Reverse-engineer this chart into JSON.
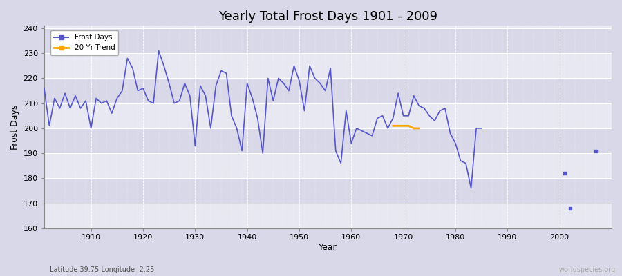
{
  "title": "Yearly Total Frost Days 1901 - 2009",
  "xlabel": "Year",
  "ylabel": "Frost Days",
  "ylim": [
    160,
    241
  ],
  "xlim": [
    1901,
    2010
  ],
  "yticks": [
    160,
    170,
    180,
    190,
    200,
    210,
    220,
    230,
    240
  ],
  "xticks": [
    1910,
    1920,
    1930,
    1940,
    1950,
    1960,
    1970,
    1980,
    1990,
    2000
  ],
  "line_color": "#5555cc",
  "trend_color": "#FFA500",
  "fig_bg": "#d8d8e8",
  "plot_bg_light": "#e8e8f2",
  "plot_bg_dark": "#d8d8e8",
  "subtitle": "Latitude 39.75 Longitude -2.25",
  "watermark": "worldspecies.org",
  "frost_days": {
    "1901": 216,
    "1902": 201,
    "1903": 212,
    "1904": 208,
    "1905": 214,
    "1906": 208,
    "1907": 213,
    "1908": 208,
    "1909": 211,
    "1910": 200,
    "1911": 212,
    "1912": 210,
    "1913": 211,
    "1914": 206,
    "1915": 212,
    "1916": 215,
    "1917": 228,
    "1918": 224,
    "1919": 215,
    "1920": 216,
    "1921": 211,
    "1922": 210,
    "1923": 231,
    "1924": 225,
    "1925": 218,
    "1926": 210,
    "1927": 211,
    "1928": 218,
    "1929": 213,
    "1930": 193,
    "1931": 217,
    "1932": 213,
    "1933": 200,
    "1934": 217,
    "1935": 223,
    "1936": 222,
    "1937": 205,
    "1938": 200,
    "1939": 191,
    "1940": 218,
    "1941": 212,
    "1942": 204,
    "1943": 190,
    "1944": 220,
    "1945": 211,
    "1946": 220,
    "1947": 218,
    "1948": 215,
    "1949": 225,
    "1950": 219,
    "1951": 207,
    "1952": 225,
    "1953": 220,
    "1954": 218,
    "1955": 215,
    "1956": 224,
    "1957": 191,
    "1958": 186,
    "1959": 207,
    "1960": 194,
    "1961": 200,
    "1962": 199,
    "1963": 198,
    "1964": 197,
    "1965": 204,
    "1966": 205,
    "1967": 200,
    "1968": 204,
    "1969": 214,
    "1970": 205,
    "1971": 205,
    "1972": 213,
    "1973": 209,
    "1974": 208,
    "1975": 205,
    "1976": 203,
    "1977": 207,
    "1978": 208,
    "1979": 198,
    "1980": 194,
    "1981": 187,
    "1982": 186,
    "1983": 176,
    "1984": 200,
    "1985": 200,
    "2001": 182,
    "2002": 168,
    "2007": 191
  },
  "trend_data": [
    [
      1968,
      201
    ],
    [
      1969,
      201
    ],
    [
      1970,
      201
    ],
    [
      1971,
      201
    ],
    [
      1972,
      200
    ],
    [
      1973,
      200
    ]
  ]
}
